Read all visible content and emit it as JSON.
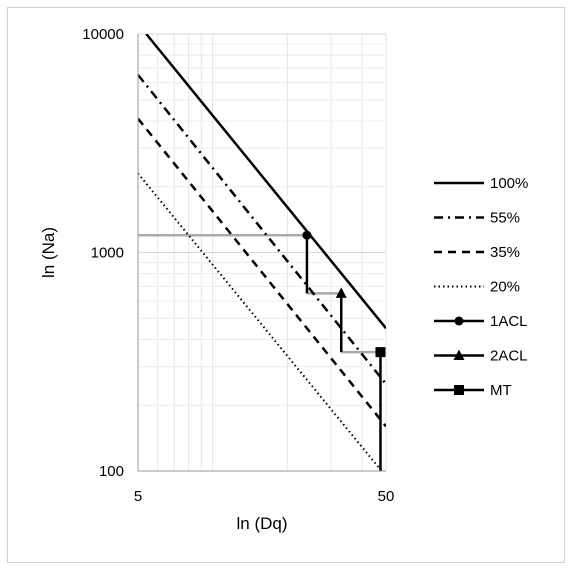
{
  "chart_data": {
    "type": "line",
    "title": "",
    "xlabel": "ln (Dq)",
    "ylabel": "ln (Na)",
    "x_scale": "log",
    "y_scale": "log",
    "xlim": [
      5,
      50
    ],
    "ylim": [
      100,
      10000
    ],
    "x_ticks": [
      "5",
      "50"
    ],
    "y_ticks": [
      "100",
      "1000",
      "10000"
    ],
    "grid": true,
    "legend_position": "right",
    "series": [
      {
        "name": "100%",
        "style": "solid",
        "marker": "none",
        "color": "#000000",
        "x": [
          5.4,
          50
        ],
        "y": [
          10000,
          450
        ]
      },
      {
        "name": "55%",
        "style": "dashdot",
        "marker": "none",
        "color": "#000000",
        "x": [
          5,
          50
        ],
        "y": [
          6500,
          250
        ]
      },
      {
        "name": "35%",
        "style": "dashed",
        "marker": "none",
        "color": "#000000",
        "x": [
          5,
          50
        ],
        "y": [
          4100,
          160
        ]
      },
      {
        "name": "20%",
        "style": "dotted",
        "marker": "none",
        "color": "#000000",
        "x": [
          5,
          48
        ],
        "y": [
          2300,
          100
        ]
      },
      {
        "name": "1ACL",
        "style": "solid",
        "marker": "circle",
        "color": "#000000",
        "x": [
          24,
          24
        ],
        "y": [
          1200,
          650
        ],
        "guide": {
          "x": [
            5,
            24
          ],
          "y": [
            1200,
            1200
          ]
        }
      },
      {
        "name": "2ACL",
        "style": "solid",
        "marker": "triangle",
        "color": "#000000",
        "x": [
          33,
          33
        ],
        "y": [
          650,
          350
        ],
        "guide": {
          "x": [
            24,
            33
          ],
          "y": [
            650,
            650
          ]
        }
      },
      {
        "name": "MT",
        "style": "solid",
        "marker": "square",
        "color": "#000000",
        "x": [
          47.5,
          47.5
        ],
        "y": [
          350,
          100
        ],
        "guide": {
          "x": [
            33,
            47.5
          ],
          "y": [
            350,
            350
          ]
        }
      }
    ],
    "guide_color": "#aaaaaa"
  }
}
